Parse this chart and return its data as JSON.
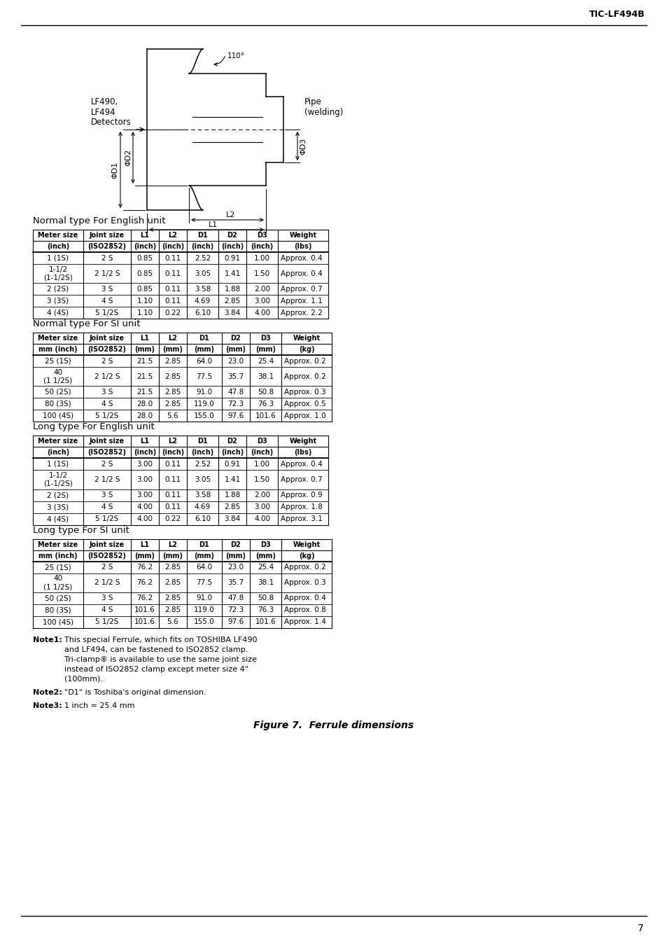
{
  "header_text": "TIC-LF494B",
  "page_number": "7",
  "figure_caption": "Figure 7.  Ferrule dimensions",
  "diagram": {
    "lf490_label": "LF490,\nLF494\nDetectors",
    "pipe_label": "Pipe\n(welding)",
    "d1_label": "ΦD1",
    "d2_label": "ΦD2",
    "d3_label": "ΦD3",
    "l1_label": "L1",
    "l2_label": "L2",
    "angle_label": "110°"
  },
  "table1_title": "Normal type For English unit",
  "table1_headers": [
    [
      "Meter size",
      "Joint size",
      "L1",
      "L2",
      "D1",
      "D2",
      "D3",
      "Weight"
    ],
    [
      "(inch)",
      "(ISO2852)",
      "(inch)",
      "(inch)",
      "(inch)",
      "(inch)",
      "(inch)",
      "(lbs)"
    ]
  ],
  "table1_data": [
    [
      "1 (1S)",
      "2 S",
      "0.85",
      "0.11",
      "2.52",
      "0.91",
      "1.00",
      "Approx. 0.4"
    ],
    [
      "1-1/2\n(1-1/2S)",
      "2 1/2 S",
      "0.85",
      "0.11",
      "3.05",
      "1.41",
      "1.50",
      "Approx. 0.4"
    ],
    [
      "2 (2S)",
      "3 S",
      "0.85",
      "0.11",
      "3.58",
      "1.88",
      "2.00",
      "Approx. 0.7"
    ],
    [
      "3 (3S)",
      "4 S",
      "1.10",
      "0.11",
      "4.69",
      "2.85",
      "3.00",
      "Approx. 1.1"
    ],
    [
      "4 (4S)",
      "5 1/2S",
      "1.10",
      "0.22",
      "6.10",
      "3.84",
      "4.00",
      "Approx. 2.2"
    ]
  ],
  "table2_title": "Normal type For SI unit",
  "table2_headers": [
    [
      "Meter size",
      "Joint size",
      "L1",
      "L2",
      "D1",
      "D2",
      "D3",
      "Weight"
    ],
    [
      "mm (inch)",
      "(ISO2852)",
      "(mm)",
      "(mm)",
      "(mm)",
      "(mm)",
      "(mm)",
      "(kg)"
    ]
  ],
  "table2_data": [
    [
      "25 (1S)",
      "2 S",
      "21.5",
      "2.85",
      "64.0",
      "23.0",
      "25.4",
      "Approx. 0.2"
    ],
    [
      "40\n(1 1/2S)",
      "2 1/2 S",
      "21.5",
      "2.85",
      "77.5",
      "35.7",
      "38.1",
      "Approx. 0.2"
    ],
    [
      "50 (2S)",
      "3 S",
      "21.5",
      "2.85",
      "91.0",
      "47.8",
      "50.8",
      "Approx. 0.3"
    ],
    [
      "80 (3S)",
      "4 S",
      "28.0",
      "2.85",
      "119.0",
      "72.3",
      "76.3",
      "Approx. 0.5"
    ],
    [
      "100 (4S)",
      "5 1/2S",
      "28.0",
      "5.6",
      "155.0",
      "97.6",
      "101.6",
      "Approx. 1.0"
    ]
  ],
  "table3_title": "Long type For English unit",
  "table3_headers": [
    [
      "Meter size",
      "Joint size",
      "L1",
      "L2",
      "D1",
      "D2",
      "D3",
      "Weight"
    ],
    [
      "(inch)",
      "(ISO2852)",
      "(inch)",
      "(inch)",
      "(inch)",
      "(inch)",
      "(inch)",
      "(lbs)"
    ]
  ],
  "table3_data": [
    [
      "1 (1S)",
      "2 S",
      "3.00",
      "0.11",
      "2.52",
      "0.91",
      "1.00",
      "Approx. 0.4"
    ],
    [
      "1-1/2\n(1-1/2S)",
      "2 1/2 S",
      "3.00",
      "0.11",
      "3.05",
      "1.41",
      "1.50",
      "Approx. 0.7"
    ],
    [
      "2 (2S)",
      "3 S",
      "3.00",
      "0.11",
      "3.58",
      "1.88",
      "2.00",
      "Approx. 0.9"
    ],
    [
      "3 (3S)",
      "4 S",
      "4.00",
      "0.11",
      "4.69",
      "2.85",
      "3.00",
      "Approx. 1.8"
    ],
    [
      "4 (4S)",
      "5 1/2S",
      "4.00",
      "0.22",
      "6.10",
      "3.84",
      "4.00",
      "Approx. 3.1"
    ]
  ],
  "table4_title": "Long type For SI unit",
  "table4_headers": [
    [
      "Meter size",
      "Joint size",
      "L1",
      "L2",
      "D1",
      "D2",
      "D3",
      "Weight"
    ],
    [
      "mm (inch)",
      "(ISO2852)",
      "(mm)",
      "(mm)",
      "(mm)",
      "(mm)",
      "(mm)",
      "(kg)"
    ]
  ],
  "table4_data": [
    [
      "25 (1S)",
      "2 S",
      "76.2",
      "2.85",
      "64.0",
      "23.0",
      "25.4",
      "Approx. 0.2"
    ],
    [
      "40\n(1 1/2S)",
      "2 1/2 S",
      "76.2",
      "2.85",
      "77.5",
      "35.7",
      "38.1",
      "Approx. 0.3"
    ],
    [
      "50 (2S)",
      "3 S",
      "76.2",
      "2.85",
      "91.0",
      "47.8",
      "50.8",
      "Approx. 0.4"
    ],
    [
      "80 (3S)",
      "4 S",
      "101.6",
      "2.85",
      "119.0",
      "72.3",
      "76.3",
      "Approx. 0.8"
    ],
    [
      "100 (4S)",
      "5 1/2S",
      "101.6",
      "5.6",
      "155.0",
      "97.6",
      "101.6",
      "Approx. 1.4"
    ]
  ]
}
